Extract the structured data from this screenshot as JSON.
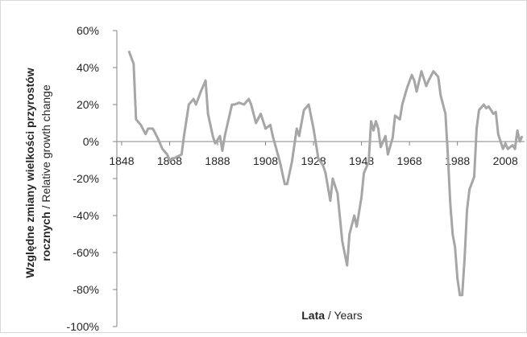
{
  "chart_data": {
    "type": "line",
    "y_label_lines": [
      {
        "bold": "Względne zmiany wielkości przyrostów"
      },
      {
        "bold": "rocznych",
        "normal": "/ Relative growth change"
      }
    ],
    "x_label": {
      "bold": "Lata",
      "normal": "/ Years"
    },
    "xlim": [
      1846,
      2016
    ],
    "xticks": [
      1848,
      1868,
      1888,
      1908,
      1928,
      1948,
      1968,
      1988,
      2008
    ],
    "ylim": [
      -100,
      60
    ],
    "yticks": [
      {
        "value": -100,
        "label": "-100%"
      },
      {
        "value": -80,
        "label": "-80%"
      },
      {
        "value": -60,
        "label": "-60%"
      },
      {
        "value": -40,
        "label": "-40%"
      },
      {
        "value": -20,
        "label": "-20%"
      },
      {
        "value": 0,
        "label": "0%"
      },
      {
        "value": 20,
        "label": "20%"
      },
      {
        "value": 40,
        "label": "40%"
      },
      {
        "value": 60,
        "label": "60%"
      }
    ],
    "grid": false,
    "series": [
      {
        "color": "#a6a6a6",
        "x": [
          1851,
          1853,
          1854,
          1856,
          1858,
          1859,
          1861,
          1863,
          1865,
          1867,
          1868,
          1870,
          1873,
          1874,
          1876,
          1878,
          1879,
          1881,
          1883,
          1884,
          1886,
          1887,
          1889,
          1890,
          1891,
          1894,
          1895,
          1897,
          1899,
          1901,
          1902,
          1904,
          1906,
          1908,
          1910,
          1911,
          1914,
          1916,
          1917,
          1919,
          1921,
          1922,
          1924,
          1926,
          1928,
          1930,
          1932,
          1933,
          1935,
          1936,
          1938,
          1940,
          1942,
          1943,
          1945,
          1946,
          1948,
          1949,
          1951,
          1952,
          1953,
          1954,
          1955,
          1956,
          1958,
          1959,
          1961,
          1962,
          1964,
          1965,
          1967,
          1969,
          1970,
          1971,
          1973,
          1975,
          1976,
          1978,
          1980,
          1981,
          1983,
          1984,
          1985,
          1986,
          1987,
          1988,
          1989,
          1990,
          1991,
          1992,
          1993,
          1995,
          1996,
          1997,
          1999,
          2000,
          2001,
          2003,
          2004,
          2005,
          2007,
          2008,
          2009,
          2011,
          2012,
          2013,
          2014,
          2015
        ],
        "values": [
          49,
          42,
          12,
          9,
          4,
          7,
          7,
          2,
          -4,
          -7,
          -10,
          -9,
          -7,
          3,
          20,
          23,
          20,
          27,
          33,
          15,
          3,
          -1,
          3,
          -5,
          3,
          20,
          20,
          21,
          20,
          23,
          20,
          10,
          15,
          7,
          9,
          3,
          -11,
          -23,
          -23,
          -11,
          7,
          3,
          17,
          20,
          7,
          -9,
          -13,
          -17,
          -32,
          -20,
          -28,
          -54,
          -67,
          -50,
          -40,
          -46,
          -30,
          -17,
          -11,
          11,
          6,
          11,
          7,
          -3,
          3,
          -7,
          2,
          14,
          12,
          20,
          29,
          36,
          33,
          27,
          38,
          30,
          33,
          38,
          35,
          25,
          15,
          -7,
          -33,
          -50,
          -57,
          -74,
          -83,
          -83,
          -63,
          -37,
          -26,
          -19,
          7,
          17,
          20,
          18,
          19,
          15,
          16,
          4,
          -4,
          -1,
          -4,
          -2,
          -4,
          6,
          0,
          3
        ]
      }
    ]
  }
}
